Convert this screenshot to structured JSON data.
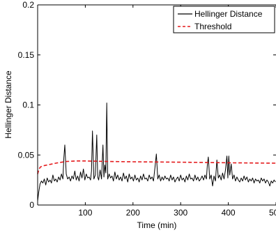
{
  "chart_data": {
    "type": "line",
    "title": "",
    "xlabel": "Time (min)",
    "ylabel": "Hellinger Distance",
    "xlim": [
      0,
      500
    ],
    "ylim": [
      0,
      0.2
    ],
    "x_ticks": [
      100,
      200,
      300,
      400,
      500
    ],
    "x_tick_labels": [
      "100",
      "200",
      "300",
      "400",
      "500"
    ],
    "y_ticks": [
      0,
      0.05,
      0.1,
      0.15,
      0.2
    ],
    "y_tick_labels": [
      "0",
      "0.05",
      "0.1",
      "0.15",
      "0.2"
    ],
    "grid": false,
    "legend_position": "top-right",
    "series": [
      {
        "name": "Hellinger Distance",
        "color": "#000000",
        "style": "solid",
        "x": [
          0,
          2,
          5,
          8,
          11,
          14,
          17,
          20,
          23,
          26,
          29,
          32,
          35,
          38,
          41,
          44,
          47,
          50,
          53,
          55,
          57,
          60,
          63,
          66,
          69,
          72,
          75,
          78,
          81,
          84,
          87,
          90,
          93,
          96,
          99,
          102,
          105,
          108,
          111,
          113,
          115,
          118,
          121,
          124,
          126,
          128,
          131,
          134,
          137,
          139,
          141,
          143,
          145,
          147,
          150,
          153,
          156,
          159,
          162,
          165,
          168,
          171,
          174,
          177,
          180,
          183,
          186,
          189,
          192,
          195,
          198,
          201,
          204,
          207,
          210,
          213,
          216,
          219,
          222,
          225,
          228,
          231,
          234,
          237,
          240,
          243,
          246,
          249,
          252,
          255,
          258,
          261,
          264,
          267,
          270,
          273,
          276,
          279,
          282,
          285,
          288,
          291,
          294,
          297,
          300,
          303,
          306,
          309,
          312,
          315,
          318,
          321,
          324,
          327,
          330,
          333,
          336,
          339,
          342,
          345,
          348,
          351,
          354,
          356,
          358,
          361,
          364,
          367,
          370,
          373,
          376,
          379,
          382,
          385,
          388,
          391,
          394,
          397,
          399,
          401,
          403,
          406,
          409,
          412,
          415,
          418,
          421,
          424,
          427,
          430,
          433,
          436,
          439,
          442,
          445,
          448,
          451,
          454,
          457,
          460,
          463,
          466,
          469,
          472,
          475,
          478,
          481,
          484,
          487,
          490,
          493,
          496,
          499
        ],
        "y": [
          0.004,
          0.012,
          0.021,
          0.024,
          0.022,
          0.026,
          0.02,
          0.027,
          0.023,
          0.025,
          0.022,
          0.03,
          0.024,
          0.026,
          0.023,
          0.028,
          0.025,
          0.031,
          0.026,
          0.047,
          0.06,
          0.031,
          0.026,
          0.028,
          0.024,
          0.029,
          0.026,
          0.034,
          0.025,
          0.029,
          0.024,
          0.033,
          0.027,
          0.036,
          0.025,
          0.031,
          0.027,
          0.028,
          0.025,
          0.034,
          0.074,
          0.026,
          0.03,
          0.07,
          0.028,
          0.025,
          0.035,
          0.026,
          0.06,
          0.028,
          0.04,
          0.032,
          0.102,
          0.026,
          0.031,
          0.027,
          0.029,
          0.024,
          0.033,
          0.026,
          0.03,
          0.025,
          0.028,
          0.024,
          0.032,
          0.026,
          0.029,
          0.023,
          0.031,
          0.026,
          0.028,
          0.024,
          0.03,
          0.025,
          0.027,
          0.023,
          0.029,
          0.025,
          0.031,
          0.026,
          0.027,
          0.024,
          0.03,
          0.026,
          0.028,
          0.024,
          0.037,
          0.051,
          0.026,
          0.03,
          0.024,
          0.028,
          0.025,
          0.029,
          0.026,
          0.027,
          0.024,
          0.03,
          0.025,
          0.028,
          0.023,
          0.026,
          0.028,
          0.024,
          0.03,
          0.025,
          0.027,
          0.023,
          0.029,
          0.025,
          0.031,
          0.026,
          0.027,
          0.024,
          0.03,
          0.025,
          0.028,
          0.024,
          0.026,
          0.029,
          0.025,
          0.03,
          0.026,
          0.04,
          0.048,
          0.026,
          0.03,
          0.019,
          0.029,
          0.024,
          0.045,
          0.027,
          0.03,
          0.025,
          0.032,
          0.026,
          0.035,
          0.049,
          0.027,
          0.049,
          0.03,
          0.041,
          0.026,
          0.03,
          0.024,
          0.028,
          0.025,
          0.023,
          0.027,
          0.024,
          0.029,
          0.025,
          0.028,
          0.023,
          0.026,
          0.024,
          0.027,
          0.022,
          0.026,
          0.024,
          0.025,
          0.022,
          0.027,
          0.024,
          0.026,
          0.022,
          0.025,
          0.023,
          0.019,
          0.024,
          0.022,
          0.025,
          0.023
        ]
      },
      {
        "name": "Threshold",
        "color": "#e41a1c",
        "style": "dashed",
        "x": [
          0,
          3,
          6,
          10,
          15,
          20,
          30,
          40,
          60,
          80,
          100,
          150,
          200,
          250,
          300,
          350,
          400,
          450,
          500
        ],
        "y": [
          0.031,
          0.036,
          0.038,
          0.039,
          0.0395,
          0.04,
          0.041,
          0.042,
          0.0435,
          0.044,
          0.044,
          0.0435,
          0.0432,
          0.043,
          0.0428,
          0.0425,
          0.0422,
          0.042,
          0.0418
        ]
      }
    ]
  }
}
